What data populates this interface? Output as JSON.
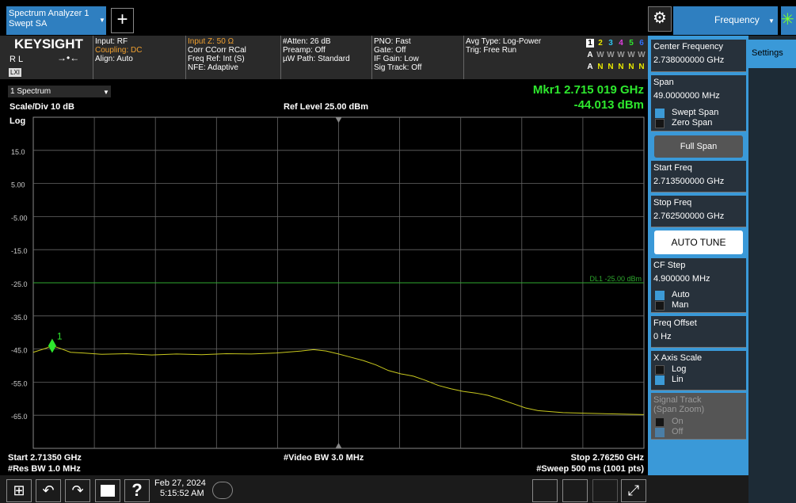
{
  "tab": {
    "line1": "Spectrum Analyzer 1",
    "line2": "Swept SA"
  },
  "measure_menu": "Frequency",
  "settings_tab": "Settings",
  "info": {
    "brand": "KEYSIGHT",
    "rl": "R L",
    "lxi": "LXI",
    "columns": [
      [
        "Input: RF",
        "Coupling: DC",
        "Align: Auto"
      ],
      [
        "Input Z: 50 Ω",
        "Corr CCorr RCal",
        "Freq Ref: Int (S)",
        "NFE: Adaptive"
      ],
      [
        "#Atten: 26 dB",
        "Preamp: Off",
        "µW Path: Standard"
      ],
      [
        "PNO: Fast",
        "Gate: Off",
        "IF Gain: Low",
        "Sig Track: Off"
      ],
      [
        "Avg Type: Log-Power",
        "Trig: Free Run"
      ]
    ],
    "trace_numbers": [
      "1",
      "2",
      "3",
      "4",
      "5",
      "6"
    ],
    "trace_types": [
      "A",
      "W",
      "W",
      "W",
      "W",
      "W"
    ],
    "trace_detectors": [
      "A",
      "N",
      "N",
      "N",
      "N",
      "N"
    ]
  },
  "chart_data": {
    "type": "line",
    "window": "1 Spectrum",
    "scale": "Scale/Div 10 dB",
    "ref_level": "Ref Level 25.00 dBm",
    "y_scale": "Log",
    "xlim": [
      2.7135,
      2.7625
    ],
    "x_divisions": 10,
    "ylim": [
      -75,
      25
    ],
    "yticks": [
      {
        "value": 15,
        "label": "15.0"
      },
      {
        "value": 5,
        "label": "5.00"
      },
      {
        "value": -5,
        "label": "-5.00"
      },
      {
        "value": -15,
        "label": "-15.0"
      },
      {
        "value": -25,
        "label": "-25.0"
      },
      {
        "value": -35,
        "label": "-35.0"
      },
      {
        "value": -45,
        "label": "-45.0"
      },
      {
        "value": -55,
        "label": "-55.0"
      },
      {
        "value": -65,
        "label": "-65.0"
      }
    ],
    "grid": true,
    "color": "#c8c81e",
    "x": [
      2.7135,
      2.7145,
      2.715,
      2.7155,
      2.7165,
      2.7175,
      2.719,
      2.721,
      2.723,
      2.725,
      2.727,
      2.729,
      2.731,
      2.733,
      2.735,
      2.736,
      2.737,
      2.738,
      2.739,
      2.74,
      2.741,
      2.742,
      2.743,
      2.744,
      2.745,
      2.746,
      2.747,
      2.748,
      2.749,
      2.75,
      2.751,
      2.752,
      2.753,
      2.754,
      2.755,
      2.756,
      2.758,
      2.76,
      2.7625
    ],
    "values": [
      -46.0,
      -44.8,
      -44.0,
      -44.6,
      -46.0,
      -46.2,
      -46.6,
      -46.4,
      -46.8,
      -46.5,
      -46.7,
      -46.4,
      -46.5,
      -46.2,
      -45.6,
      -45.2,
      -45.6,
      -46.5,
      -47.5,
      -48.5,
      -49.8,
      -51.5,
      -52.5,
      -53.2,
      -54.5,
      -56.0,
      -57.0,
      -57.8,
      -58.3,
      -59.0,
      -60.2,
      -61.5,
      -62.8,
      -63.6,
      -63.9,
      -64.2,
      -64.4,
      -64.6,
      -64.8
    ],
    "marker": {
      "x": 2.715019,
      "y": -44.013,
      "label": "1",
      "readout_freq": "Mkr1  2.715 019 GHz",
      "readout_amp": "-44.013 dBm"
    },
    "display_line": {
      "value": -25,
      "label": "DL1 -25.00 dBm",
      "color": "#2ea82e"
    },
    "footer": {
      "start": "Start 2.71350 GHz",
      "vbw": "#Video BW 3.0 MHz",
      "stop": "Stop 2.76250 GHz",
      "rbw": "#Res BW 1.0 MHz",
      "sweep": "#Sweep 500 ms (1001 pts)"
    }
  },
  "panel": {
    "center_freq": {
      "label": "Center Frequency",
      "value": "2.738000000 GHz"
    },
    "span": {
      "label": "Span",
      "value": "49.0000000 MHz",
      "options": [
        "Swept Span",
        "Zero Span"
      ]
    },
    "full_span": "Full Span",
    "start_freq": {
      "label": "Start Freq",
      "value": "2.713500000 GHz"
    },
    "stop_freq": {
      "label": "Stop Freq",
      "value": "2.762500000 GHz"
    },
    "auto_tune": "AUTO TUNE",
    "cf_step": {
      "label": "CF Step",
      "value": "4.900000 MHz",
      "options": [
        "Auto",
        "Man"
      ]
    },
    "freq_offset": {
      "label": "Freq Offset",
      "value": "0 Hz"
    },
    "x_axis_scale": {
      "label": "X Axis Scale",
      "options": [
        "Log",
        "Lin"
      ]
    },
    "signal_track": {
      "label": "Signal Track",
      "sublabel": "(Span Zoom)",
      "options": [
        "On",
        "Off"
      ]
    }
  },
  "taskbar": {
    "date": "Feb 27, 2024",
    "time": "5:15:52 AM"
  }
}
